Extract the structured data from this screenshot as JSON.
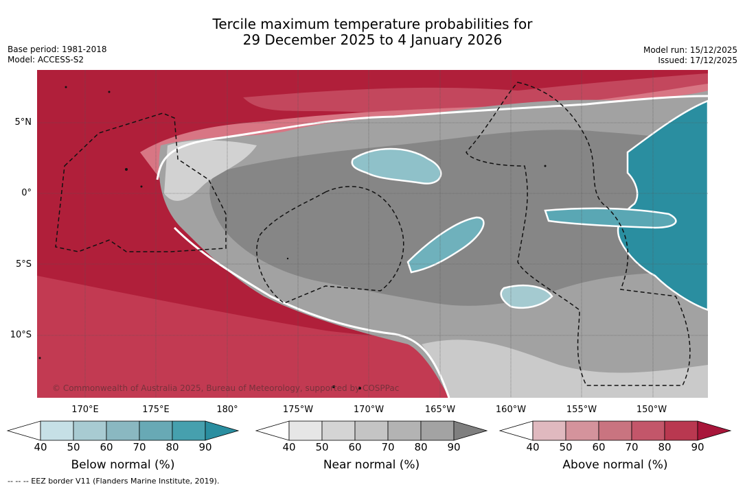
{
  "title": {
    "line1": "Tercile maximum temperature probabilities for",
    "line2": "29 December 2025 to 4 January 2026"
  },
  "meta": {
    "base_period": "Base period: 1981-2018",
    "model": "Model: ACCESS-S2",
    "model_run": "Model run: 15/12/2025",
    "issued": "Issued: 17/12/2025"
  },
  "map": {
    "credit": "© Commonwealth of Australia 2025, Bureau of Meteorology, supported by COSPPac",
    "lat_labels": [
      "5°N",
      "0°",
      "5°S",
      "10°S"
    ],
    "lon_labels": [
      "170°E",
      "175°E",
      "180°",
      "175°W",
      "170°W",
      "165°W",
      "160°W",
      "155°W",
      "150°W"
    ],
    "colors": {
      "above_strong": "#b01f3a",
      "above_medium": "#c8485e",
      "above_light": "#dc8892",
      "near_strong": "#8a8a8a",
      "near_medium": "#a5a5a5",
      "near_light": "#c9c9c9",
      "below_strong": "#2a8ea0",
      "below_light": "#8fc1c9"
    }
  },
  "colorbars": [
    {
      "label": "Below normal (%)",
      "ticks": [
        "40",
        "50",
        "60",
        "70",
        "80",
        "90"
      ],
      "colors": [
        "#ffffff",
        "#c6e0e6",
        "#a8cbd2",
        "#8ab8c1",
        "#68a9b5",
        "#46a0ae",
        "#2a8ea0"
      ]
    },
    {
      "label": "Near normal (%)",
      "ticks": [
        "40",
        "50",
        "60",
        "70",
        "80",
        "90"
      ],
      "colors": [
        "#ffffff",
        "#e6e6e6",
        "#d4d4d4",
        "#c4c4c4",
        "#b3b3b3",
        "#a3a3a3",
        "#7f7f7f"
      ]
    },
    {
      "label": "Above normal (%)",
      "ticks": [
        "40",
        "50",
        "60",
        "70",
        "80",
        "90"
      ],
      "colors": [
        "#ffffff",
        "#e0b9bf",
        "#d4939c",
        "#c97480",
        "#c3566a",
        "#b93850",
        "#a8163a"
      ]
    }
  ],
  "footer": "--  --  -- EEZ border V11 (Flanders Marine Institute, 2019)."
}
